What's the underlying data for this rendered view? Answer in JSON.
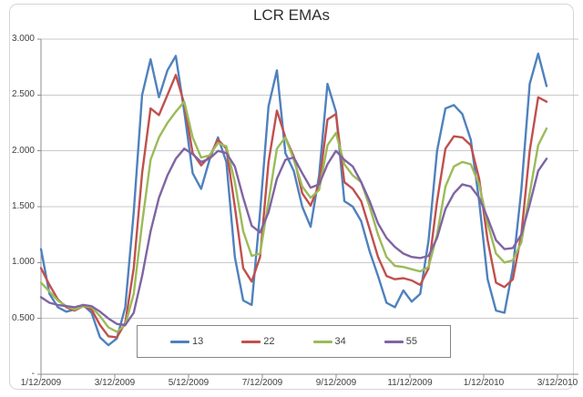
{
  "chart_data": {
    "type": "line",
    "title": "LCR EMAs",
    "xlabel": "",
    "ylabel": "",
    "ylim": [
      0,
      3.0
    ],
    "grid": "horizontal-only",
    "legend_position": "bottom-inside",
    "x_tick_labels": [
      "1/12/2009",
      "3/12/2009",
      "5/12/2009",
      "7/12/2009",
      "9/12/2009",
      "11/12/2009",
      "1/12/2010",
      "3/12/2010"
    ],
    "y_ticks": [
      {
        "label": "3.000",
        "value": 3.0
      },
      {
        "label": "2.500",
        "value": 2.5
      },
      {
        "label": "2.000",
        "value": 2.0
      },
      {
        "label": "1.500",
        "value": 1.5
      },
      {
        "label": "1.000",
        "value": 1.0
      },
      {
        "label": "0.500",
        "value": 0.5
      },
      {
        "label": "-",
        "value": 0.0
      }
    ],
    "x": [
      "1/12/2009",
      "1/19/2009",
      "1/26/2009",
      "2/2/2009",
      "2/9/2009",
      "2/16/2009",
      "2/23/2009",
      "3/2/2009",
      "3/9/2009",
      "3/16/2009",
      "3/23/2009",
      "3/30/2009",
      "4/6/2009",
      "4/13/2009",
      "4/20/2009",
      "4/27/2009",
      "5/4/2009",
      "5/11/2009",
      "5/18/2009",
      "5/25/2009",
      "6/1/2009",
      "6/8/2009",
      "6/15/2009",
      "6/22/2009",
      "6/29/2009",
      "7/6/2009",
      "7/13/2009",
      "7/20/2009",
      "7/27/2009",
      "8/3/2009",
      "8/10/2009",
      "8/17/2009",
      "8/24/2009",
      "8/31/2009",
      "9/7/2009",
      "9/14/2009",
      "9/21/2009",
      "9/28/2009",
      "10/5/2009",
      "10/12/2009",
      "10/19/2009",
      "10/26/2009",
      "11/2/2009",
      "11/9/2009",
      "11/16/2009",
      "11/23/2009",
      "11/30/2009",
      "12/7/2009",
      "12/14/2009",
      "12/21/2009",
      "12/28/2009",
      "1/4/2010",
      "1/11/2010",
      "1/18/2010",
      "1/25/2010",
      "2/1/2010",
      "2/8/2010",
      "2/15/2010",
      "2/22/2010",
      "3/1/2010",
      "3/8/2010"
    ],
    "series": [
      {
        "name": "13",
        "color": "#4F81BD",
        "values": [
          1.12,
          0.72,
          0.6,
          0.56,
          0.58,
          0.62,
          0.55,
          0.33,
          0.26,
          0.32,
          0.6,
          1.45,
          2.5,
          2.82,
          2.48,
          2.72,
          2.85,
          2.35,
          1.8,
          1.66,
          1.92,
          2.12,
          1.9,
          1.05,
          0.66,
          0.62,
          1.45,
          2.4,
          2.72,
          1.98,
          1.82,
          1.5,
          1.32,
          1.78,
          2.6,
          2.35,
          1.55,
          1.5,
          1.37,
          1.1,
          0.88,
          0.64,
          0.6,
          0.75,
          0.65,
          0.72,
          1.2,
          2.0,
          2.38,
          2.41,
          2.33,
          2.1,
          1.55,
          0.85,
          0.57,
          0.55,
          0.95,
          1.65,
          2.6,
          2.87,
          2.58
        ]
      },
      {
        "name": "22",
        "color": "#C0504D",
        "values": [
          0.95,
          0.8,
          0.67,
          0.6,
          0.57,
          0.61,
          0.58,
          0.44,
          0.34,
          0.33,
          0.46,
          0.95,
          1.8,
          2.38,
          2.32,
          2.5,
          2.68,
          2.42,
          1.98,
          1.87,
          1.95,
          2.1,
          2.02,
          1.5,
          0.95,
          0.83,
          1.05,
          1.9,
          2.36,
          2.12,
          1.95,
          1.62,
          1.51,
          1.7,
          2.28,
          2.33,
          1.72,
          1.66,
          1.55,
          1.3,
          1.05,
          0.88,
          0.85,
          0.86,
          0.84,
          0.8,
          0.95,
          1.55,
          2.02,
          2.13,
          2.12,
          2.05,
          1.75,
          1.2,
          0.82,
          0.78,
          0.85,
          1.25,
          2.0,
          2.48,
          2.44
        ]
      },
      {
        "name": "34",
        "color": "#9BBB59",
        "values": [
          0.82,
          0.74,
          0.66,
          0.61,
          0.58,
          0.61,
          0.6,
          0.52,
          0.42,
          0.38,
          0.44,
          0.72,
          1.35,
          1.92,
          2.12,
          2.25,
          2.35,
          2.44,
          2.12,
          1.94,
          1.96,
          2.07,
          2.04,
          1.72,
          1.28,
          1.06,
          1.08,
          1.55,
          2.02,
          2.12,
          1.92,
          1.68,
          1.58,
          1.65,
          2.05,
          2.16,
          1.88,
          1.78,
          1.72,
          1.5,
          1.25,
          1.05,
          0.97,
          0.96,
          0.94,
          0.92,
          0.96,
          1.25,
          1.68,
          1.86,
          1.9,
          1.88,
          1.7,
          1.35,
          1.08,
          1.0,
          1.02,
          1.18,
          1.62,
          2.05,
          2.2
        ]
      },
      {
        "name": "55",
        "color": "#8064A2",
        "values": [
          0.69,
          0.64,
          0.62,
          0.61,
          0.6,
          0.62,
          0.61,
          0.56,
          0.5,
          0.45,
          0.44,
          0.55,
          0.88,
          1.28,
          1.58,
          1.78,
          1.93,
          2.02,
          1.97,
          1.9,
          1.93,
          2.0,
          1.98,
          1.86,
          1.58,
          1.33,
          1.27,
          1.45,
          1.75,
          1.92,
          1.94,
          1.8,
          1.67,
          1.7,
          1.88,
          2.0,
          1.92,
          1.86,
          1.72,
          1.55,
          1.35,
          1.22,
          1.14,
          1.08,
          1.05,
          1.04,
          1.06,
          1.22,
          1.48,
          1.62,
          1.7,
          1.68,
          1.58,
          1.4,
          1.2,
          1.12,
          1.13,
          1.25,
          1.52,
          1.82,
          1.93
        ]
      }
    ],
    "style": {
      "gridline_color": "#c9c9c9",
      "axis_color": "#8c8c8c",
      "tick_label_color": "#3f3f3f",
      "legend_border_color": "#868686",
      "frame_border_color": "#d5d5d5",
      "background": "#ffffff"
    }
  }
}
